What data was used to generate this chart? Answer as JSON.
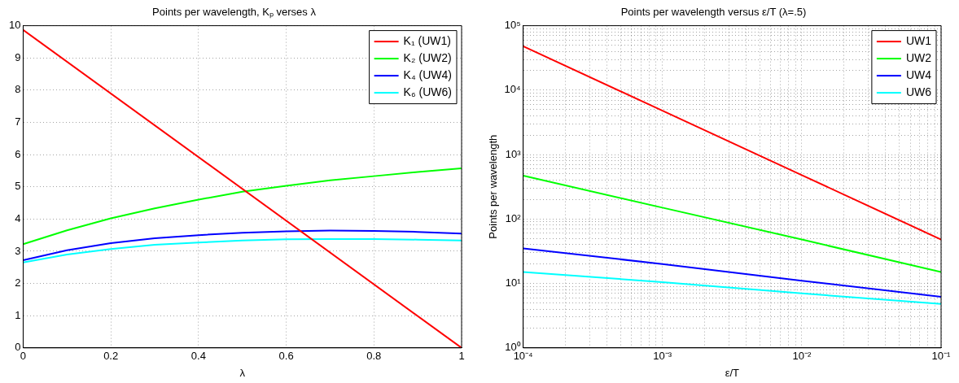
{
  "chart_data": [
    {
      "type": "line",
      "title": "Points per wavelength, Kₚ verses λ",
      "xlabel": "λ",
      "xlim": [
        0,
        1
      ],
      "xticks": [
        0,
        0.2,
        0.4,
        0.6,
        0.8,
        1
      ],
      "ylim": [
        0,
        10
      ],
      "yticks": [
        0,
        1,
        2,
        3,
        4,
        5,
        6,
        7,
        8,
        9,
        10
      ],
      "grid": true,
      "legend": "top right",
      "series": [
        {
          "name": "K₁ (UW1)",
          "color": "#ff0000",
          "x": [
            0,
            1
          ],
          "values": [
            9.87,
            0
          ]
        },
        {
          "name": "K₂ (UW2)",
          "color": "#00ff00",
          "x": [
            0,
            0.1,
            0.2,
            0.3,
            0.4,
            0.5,
            0.6,
            0.7,
            0.8,
            0.9,
            1
          ],
          "values": [
            3.22,
            3.65,
            4.02,
            4.33,
            4.6,
            4.85,
            5.03,
            5.2,
            5.33,
            5.46,
            5.57
          ]
        },
        {
          "name": "K₄ (UW4)",
          "color": "#0000ff",
          "x": [
            0,
            0.1,
            0.2,
            0.3,
            0.4,
            0.5,
            0.6,
            0.7,
            0.8,
            0.9,
            1
          ],
          "values": [
            2.72,
            3.03,
            3.25,
            3.4,
            3.5,
            3.57,
            3.62,
            3.64,
            3.63,
            3.6,
            3.55
          ]
        },
        {
          "name": "K₆ (UW6)",
          "color": "#00ffff",
          "x": [
            0,
            0.1,
            0.2,
            0.3,
            0.4,
            0.5,
            0.6,
            0.7,
            0.8,
            0.9,
            1
          ],
          "values": [
            2.65,
            2.9,
            3.07,
            3.2,
            3.27,
            3.33,
            3.37,
            3.38,
            3.38,
            3.36,
            3.33
          ]
        }
      ]
    },
    {
      "type": "line",
      "title": "Points per wavelength versus ε/T (λ=.5)",
      "xlabel": "ε/T",
      "ylabel": "Points per wavelength",
      "log": "xy",
      "grid": true,
      "legend": "top right",
      "xlim": [
        0.0001,
        0.1
      ],
      "xticks": [
        {
          "value": 0.0001,
          "label": "10⁻⁴"
        },
        {
          "value": 0.0002,
          "label": null
        },
        {
          "value": 0.0003,
          "label": null
        },
        {
          "value": 0.0004,
          "label": null
        },
        {
          "value": 0.0005,
          "label": null
        },
        {
          "value": 0.0006,
          "label": null
        },
        {
          "value": 0.0007,
          "label": null
        },
        {
          "value": 0.0008,
          "label": null
        },
        {
          "value": 0.0009,
          "label": null
        },
        {
          "value": 0.001,
          "label": "10⁻³"
        },
        {
          "value": 0.002,
          "label": null
        },
        {
          "value": 0.003,
          "label": null
        },
        {
          "value": 0.004,
          "label": null
        },
        {
          "value": 0.005,
          "label": null
        },
        {
          "value": 0.006,
          "label": null
        },
        {
          "value": 0.007,
          "label": null
        },
        {
          "value": 0.008,
          "label": null
        },
        {
          "value": 0.009,
          "label": null
        },
        {
          "value": 0.01,
          "label": "10⁻²"
        },
        {
          "value": 0.02,
          "label": null
        },
        {
          "value": 0.03,
          "label": null
        },
        {
          "value": 0.04,
          "label": null
        },
        {
          "value": 0.05,
          "label": null
        },
        {
          "value": 0.06,
          "label": null
        },
        {
          "value": 0.07,
          "label": null
        },
        {
          "value": 0.08,
          "label": null
        },
        {
          "value": 0.09,
          "label": null
        },
        {
          "value": 0.1,
          "label": "10⁻¹"
        }
      ],
      "ylim": [
        1,
        100000
      ],
      "yticks": [
        {
          "value": 1,
          "label": "10⁰"
        },
        {
          "value": 2,
          "label": null
        },
        {
          "value": 3,
          "label": null
        },
        {
          "value": 4,
          "label": null
        },
        {
          "value": 5,
          "label": null
        },
        {
          "value": 6,
          "label": null
        },
        {
          "value": 7,
          "label": null
        },
        {
          "value": 8,
          "label": null
        },
        {
          "value": 9,
          "label": null
        },
        {
          "value": 10,
          "label": "10¹"
        },
        {
          "value": 20,
          "label": null
        },
        {
          "value": 30,
          "label": null
        },
        {
          "value": 40,
          "label": null
        },
        {
          "value": 50,
          "label": null
        },
        {
          "value": 60,
          "label": null
        },
        {
          "value": 70,
          "label": null
        },
        {
          "value": 80,
          "label": null
        },
        {
          "value": 90,
          "label": null
        },
        {
          "value": 100,
          "label": "10²"
        },
        {
          "value": 200,
          "label": null
        },
        {
          "value": 300,
          "label": null
        },
        {
          "value": 400,
          "label": null
        },
        {
          "value": 500,
          "label": null
        },
        {
          "value": 600,
          "label": null
        },
        {
          "value": 700,
          "label": null
        },
        {
          "value": 800,
          "label": null
        },
        {
          "value": 900,
          "label": null
        },
        {
          "value": 1000,
          "label": "10³"
        },
        {
          "value": 2000,
          "label": null
        },
        {
          "value": 3000,
          "label": null
        },
        {
          "value": 4000,
          "label": null
        },
        {
          "value": 5000,
          "label": null
        },
        {
          "value": 6000,
          "label": null
        },
        {
          "value": 7000,
          "label": null
        },
        {
          "value": 8000,
          "label": null
        },
        {
          "value": 9000,
          "label": null
        },
        {
          "value": 10000,
          "label": "10⁴"
        },
        {
          "value": 20000,
          "label": null
        },
        {
          "value": 30000,
          "label": null
        },
        {
          "value": 40000,
          "label": null
        },
        {
          "value": 50000,
          "label": null
        },
        {
          "value": 60000,
          "label": null
        },
        {
          "value": 70000,
          "label": null
        },
        {
          "value": 80000,
          "label": null
        },
        {
          "value": 90000,
          "label": null
        },
        {
          "value": 100000,
          "label": "10⁵"
        }
      ],
      "series": [
        {
          "name": "UW1",
          "color": "#ff0000",
          "x": [
            0.0001,
            0.001,
            0.01,
            0.1
          ],
          "values": [
            48000,
            4800,
            480,
            48
          ]
        },
        {
          "name": "UW2",
          "color": "#00ff00",
          "x": [
            0.0001,
            0.001,
            0.01,
            0.1
          ],
          "values": [
            470,
            150,
            48,
            15
          ]
        },
        {
          "name": "UW4",
          "color": "#0000ff",
          "x": [
            0.0001,
            0.001,
            0.01,
            0.1
          ],
          "values": [
            35,
            20,
            11,
            6.2
          ]
        },
        {
          "name": "UW6",
          "color": "#00ffff",
          "x": [
            0.0001,
            0.001,
            0.01,
            0.1
          ],
          "values": [
            15,
            10.5,
            7,
            4.8
          ]
        }
      ]
    }
  ]
}
